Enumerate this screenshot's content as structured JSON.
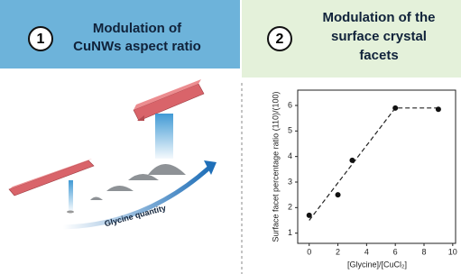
{
  "panels": [
    {
      "number": "1",
      "title_lines": [
        "Modulation of",
        "CuNWs aspect ratio"
      ],
      "arrow_label": "Glycine quantity"
    },
    {
      "number": "2",
      "title_lines": [
        "Modulation of the",
        "surface crystal",
        "facets"
      ]
    }
  ],
  "chart_data": {
    "type": "scatter",
    "x_label": "[Glycine]/[CuCl₂]",
    "y_label": "Surface facet percentage ratio (110)/(100)",
    "x": [
      0,
      2,
      3,
      6,
      9
    ],
    "values": [
      1.7,
      2.5,
      3.85,
      5.9,
      5.85
    ],
    "color": "#111111",
    "fit_line": {
      "x": [
        0,
        6,
        9
      ],
      "values": [
        1.5,
        5.9,
        5.9
      ]
    },
    "xlim": [
      -0.8,
      10.2
    ],
    "ylim": [
      0.6,
      6.6
    ],
    "xticks": [
      0,
      2,
      4,
      6,
      8,
      10
    ],
    "yticks": [
      1,
      2,
      3,
      4,
      5,
      6
    ]
  }
}
